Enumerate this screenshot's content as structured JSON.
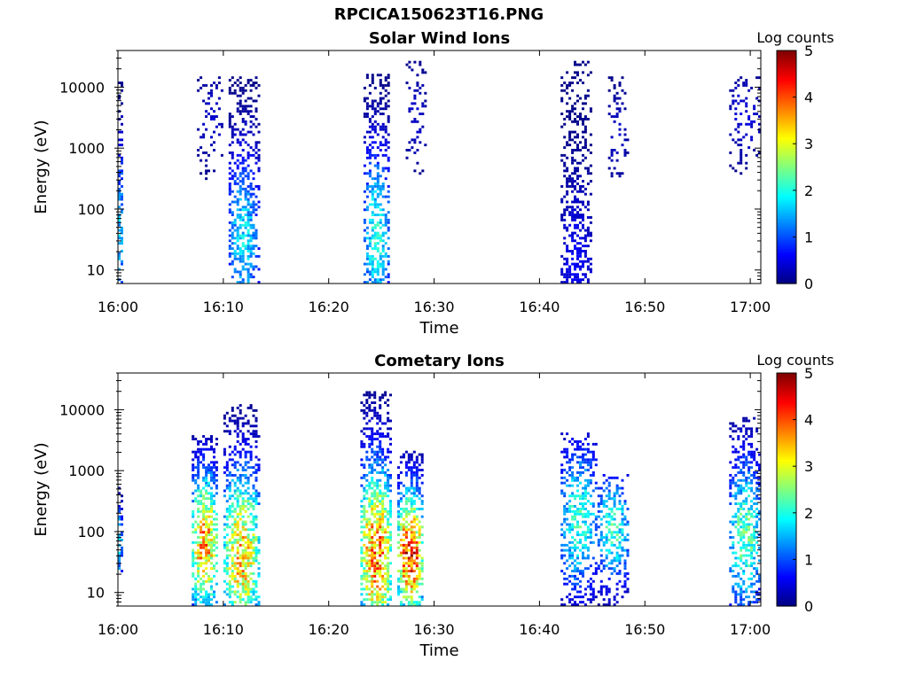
{
  "figure_title": "RPCICA150623T16.PNG",
  "chart_data": [
    {
      "type": "heatmap",
      "title": "Solar Wind Ions",
      "xlabel": "Time",
      "ylabel": "Energy (eV)",
      "y_scale": "log",
      "ylim": [
        6,
        40000
      ],
      "xlim": [
        "16:00",
        "17:01"
      ],
      "x_ticks": [
        "16:00",
        "16:10",
        "16:20",
        "16:30",
        "16:40",
        "16:50",
        "17:00"
      ],
      "y_ticks": [
        "10",
        "100",
        "1000",
        "10000"
      ],
      "colorbar": {
        "label": "Log counts",
        "range": [
          0,
          5
        ],
        "ticks": [
          "0",
          "1",
          "2",
          "3",
          "4",
          "5"
        ],
        "colormap": "jet"
      },
      "bursts": [
        {
          "t_start": "16:00.0",
          "t_end": "16:00.5",
          "e_low": 6,
          "e_high": 14000,
          "peak_energy": 40,
          "peak_log_counts": 1.8,
          "density": 0.6
        },
        {
          "t_start": "16:07.5",
          "t_end": "16:10.0",
          "e_low": 300,
          "e_high": 15000,
          "peak_energy": 3000,
          "peak_log_counts": 0.4,
          "density": 0.25
        },
        {
          "t_start": "16:10.5",
          "t_end": "16:13.3",
          "e_low": 6,
          "e_high": 15000,
          "peak_energy": 30,
          "peak_log_counts": 1.8,
          "density": 0.6
        },
        {
          "t_start": "16:23.3",
          "t_end": "16:25.8",
          "e_low": 6,
          "e_high": 16000,
          "peak_energy": 35,
          "peak_log_counts": 2.0,
          "density": 0.6
        },
        {
          "t_start": "16:27.3",
          "t_end": "16:29.2",
          "e_low": 350,
          "e_high": 25000,
          "peak_energy": 3000,
          "peak_log_counts": 0.4,
          "density": 0.25
        },
        {
          "t_start": "16:42.0",
          "t_end": "16:45.0",
          "e_low": 6,
          "e_high": 27000,
          "peak_energy": 10,
          "peak_log_counts": 0.6,
          "density": 0.55
        },
        {
          "t_start": "16:46.5",
          "t_end": "16:48.3",
          "e_low": 330,
          "e_high": 15000,
          "peak_energy": 1500,
          "peak_log_counts": 0.4,
          "density": 0.25
        },
        {
          "t_start": "16:58.0",
          "t_end": "17:01.0",
          "e_low": 350,
          "e_high": 15000,
          "peak_energy": 3000,
          "peak_log_counts": 0.5,
          "density": 0.3
        }
      ]
    },
    {
      "type": "heatmap",
      "title": "Cometary Ions",
      "xlabel": "Time",
      "ylabel": "Energy (eV)",
      "y_scale": "log",
      "ylim": [
        6,
        40000
      ],
      "xlim": [
        "16:00",
        "17:01"
      ],
      "x_ticks": [
        "16:00",
        "16:10",
        "16:20",
        "16:30",
        "16:40",
        "16:50",
        "17:00"
      ],
      "y_ticks": [
        "10",
        "100",
        "1000",
        "10000"
      ],
      "colorbar": {
        "label": "Log counts",
        "range": [
          0,
          5
        ],
        "ticks": [
          "0",
          "1",
          "2",
          "3",
          "4",
          "5"
        ],
        "colormap": "jet"
      },
      "bursts": [
        {
          "t_start": "16:00.0",
          "t_end": "16:00.4",
          "e_low": 20,
          "e_high": 500,
          "peak_energy": 60,
          "peak_log_counts": 2.2,
          "density": 0.7
        },
        {
          "t_start": "16:07.0",
          "t_end": "16:09.5",
          "e_low": 6,
          "e_high": 3500,
          "peak_energy": 60,
          "peak_log_counts": 3.8,
          "density": 0.7
        },
        {
          "t_start": "16:10.0",
          "t_end": "16:13.5",
          "e_low": 6,
          "e_high": 12000,
          "peak_energy": 40,
          "peak_log_counts": 3.5,
          "density": 0.7
        },
        {
          "t_start": "16:23.0",
          "t_end": "16:26.0",
          "e_low": 6,
          "e_high": 20000,
          "peak_energy": 40,
          "peak_log_counts": 4.0,
          "density": 0.75
        },
        {
          "t_start": "16:26.5",
          "t_end": "16:29.0",
          "e_low": 6,
          "e_high": 2000,
          "peak_energy": 40,
          "peak_log_counts": 4.4,
          "density": 0.75
        },
        {
          "t_start": "16:42.0",
          "t_end": "16:45.5",
          "e_low": 6,
          "e_high": 4000,
          "peak_energy": 150,
          "peak_log_counts": 2.2,
          "density": 0.55
        },
        {
          "t_start": "16:45.5",
          "t_end": "16:48.5",
          "e_low": 6,
          "e_high": 800,
          "peak_energy": 100,
          "peak_log_counts": 2.2,
          "density": 0.55
        },
        {
          "t_start": "16:58.0",
          "t_end": "17:01.0",
          "e_low": 6,
          "e_high": 7000,
          "peak_energy": 80,
          "peak_log_counts": 2.4,
          "density": 0.6
        }
      ]
    }
  ]
}
